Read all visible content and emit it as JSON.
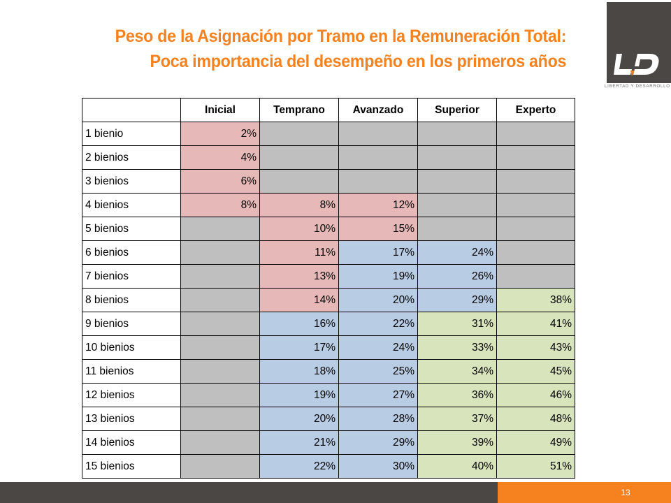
{
  "title": {
    "line1": "Peso de la Asignación por Tramo en la Remuneración Total:",
    "line2": "Poca importancia del desempeño en los primeros años"
  },
  "logo": {
    "text": "LD",
    "caption": "LIBERTAD Y DESARROLLO"
  },
  "table": {
    "headers": [
      "",
      "Inicial",
      "Temprano",
      "Avanzado",
      "Superior",
      "Experto"
    ],
    "rows": [
      {
        "label": "1 bienio",
        "cells": [
          {
            "v": "2%",
            "c": "pink"
          },
          {
            "v": "",
            "c": "gray"
          },
          {
            "v": "",
            "c": "gray"
          },
          {
            "v": "",
            "c": "gray"
          },
          {
            "v": "",
            "c": "gray"
          }
        ]
      },
      {
        "label": "2 bienios",
        "cells": [
          {
            "v": "4%",
            "c": "pink"
          },
          {
            "v": "",
            "c": "gray"
          },
          {
            "v": "",
            "c": "gray"
          },
          {
            "v": "",
            "c": "gray"
          },
          {
            "v": "",
            "c": "gray"
          }
        ]
      },
      {
        "label": "3 bienios",
        "cells": [
          {
            "v": "6%",
            "c": "pink"
          },
          {
            "v": "",
            "c": "gray"
          },
          {
            "v": "",
            "c": "gray"
          },
          {
            "v": "",
            "c": "gray"
          },
          {
            "v": "",
            "c": "gray"
          }
        ]
      },
      {
        "label": "4 bienios",
        "cells": [
          {
            "v": "8%",
            "c": "pink"
          },
          {
            "v": "8%",
            "c": "pink"
          },
          {
            "v": "12%",
            "c": "pink"
          },
          {
            "v": "",
            "c": "gray"
          },
          {
            "v": "",
            "c": "gray"
          }
        ]
      },
      {
        "label": "5 bienios",
        "cells": [
          {
            "v": "",
            "c": "gray"
          },
          {
            "v": "10%",
            "c": "pink"
          },
          {
            "v": "15%",
            "c": "pink"
          },
          {
            "v": "",
            "c": "gray"
          },
          {
            "v": "",
            "c": "gray"
          }
        ]
      },
      {
        "label": "6 bienios",
        "cells": [
          {
            "v": "",
            "c": "gray"
          },
          {
            "v": "11%",
            "c": "pink"
          },
          {
            "v": "17%",
            "c": "blue"
          },
          {
            "v": "24%",
            "c": "blue"
          },
          {
            "v": "",
            "c": "gray"
          }
        ]
      },
      {
        "label": "7 bienios",
        "cells": [
          {
            "v": "",
            "c": "gray"
          },
          {
            "v": "13%",
            "c": "pink"
          },
          {
            "v": "19%",
            "c": "blue"
          },
          {
            "v": "26%",
            "c": "blue"
          },
          {
            "v": "",
            "c": "gray"
          }
        ]
      },
      {
        "label": "8 bienios",
        "cells": [
          {
            "v": "",
            "c": "gray"
          },
          {
            "v": "14%",
            "c": "pink"
          },
          {
            "v": "20%",
            "c": "blue"
          },
          {
            "v": "29%",
            "c": "blue"
          },
          {
            "v": "38%",
            "c": "green"
          }
        ]
      },
      {
        "label": "9 bienios",
        "cells": [
          {
            "v": "",
            "c": "gray"
          },
          {
            "v": "16%",
            "c": "blue"
          },
          {
            "v": "22%",
            "c": "blue"
          },
          {
            "v": "31%",
            "c": "green"
          },
          {
            "v": "41%",
            "c": "green"
          }
        ]
      },
      {
        "label": "10 bienios",
        "cells": [
          {
            "v": "",
            "c": "gray"
          },
          {
            "v": "17%",
            "c": "blue"
          },
          {
            "v": "24%",
            "c": "blue"
          },
          {
            "v": "33%",
            "c": "green"
          },
          {
            "v": "43%",
            "c": "green"
          }
        ]
      },
      {
        "label": "11 bienios",
        "cells": [
          {
            "v": "",
            "c": "gray"
          },
          {
            "v": "18%",
            "c": "blue"
          },
          {
            "v": "25%",
            "c": "blue"
          },
          {
            "v": "34%",
            "c": "green"
          },
          {
            "v": "45%",
            "c": "green"
          }
        ]
      },
      {
        "label": "12 bienios",
        "cells": [
          {
            "v": "",
            "c": "gray"
          },
          {
            "v": "19%",
            "c": "blue"
          },
          {
            "v": "27%",
            "c": "blue"
          },
          {
            "v": "36%",
            "c": "green"
          },
          {
            "v": "46%",
            "c": "green"
          }
        ]
      },
      {
        "label": "13 bienios",
        "cells": [
          {
            "v": "",
            "c": "gray"
          },
          {
            "v": "20%",
            "c": "blue"
          },
          {
            "v": "28%",
            "c": "blue"
          },
          {
            "v": "37%",
            "c": "green"
          },
          {
            "v": "48%",
            "c": "green"
          }
        ]
      },
      {
        "label": "14 bienios",
        "cells": [
          {
            "v": "",
            "c": "gray"
          },
          {
            "v": "21%",
            "c": "blue"
          },
          {
            "v": "29%",
            "c": "blue"
          },
          {
            "v": "39%",
            "c": "green"
          },
          {
            "v": "49%",
            "c": "green"
          }
        ]
      },
      {
        "label": "15 bienios",
        "cells": [
          {
            "v": "",
            "c": "gray"
          },
          {
            "v": "22%",
            "c": "blue"
          },
          {
            "v": "30%",
            "c": "blue"
          },
          {
            "v": "40%",
            "c": "green"
          },
          {
            "v": "51%",
            "c": "green"
          }
        ]
      }
    ]
  },
  "colors": {
    "accent": "#F5821F",
    "dark": "#4a4745",
    "pink": "#e6b9b8",
    "gray": "#bfbfbf",
    "blue": "#b8cce4",
    "green": "#d8e4bc"
  },
  "footer": {
    "page_number": "13"
  }
}
